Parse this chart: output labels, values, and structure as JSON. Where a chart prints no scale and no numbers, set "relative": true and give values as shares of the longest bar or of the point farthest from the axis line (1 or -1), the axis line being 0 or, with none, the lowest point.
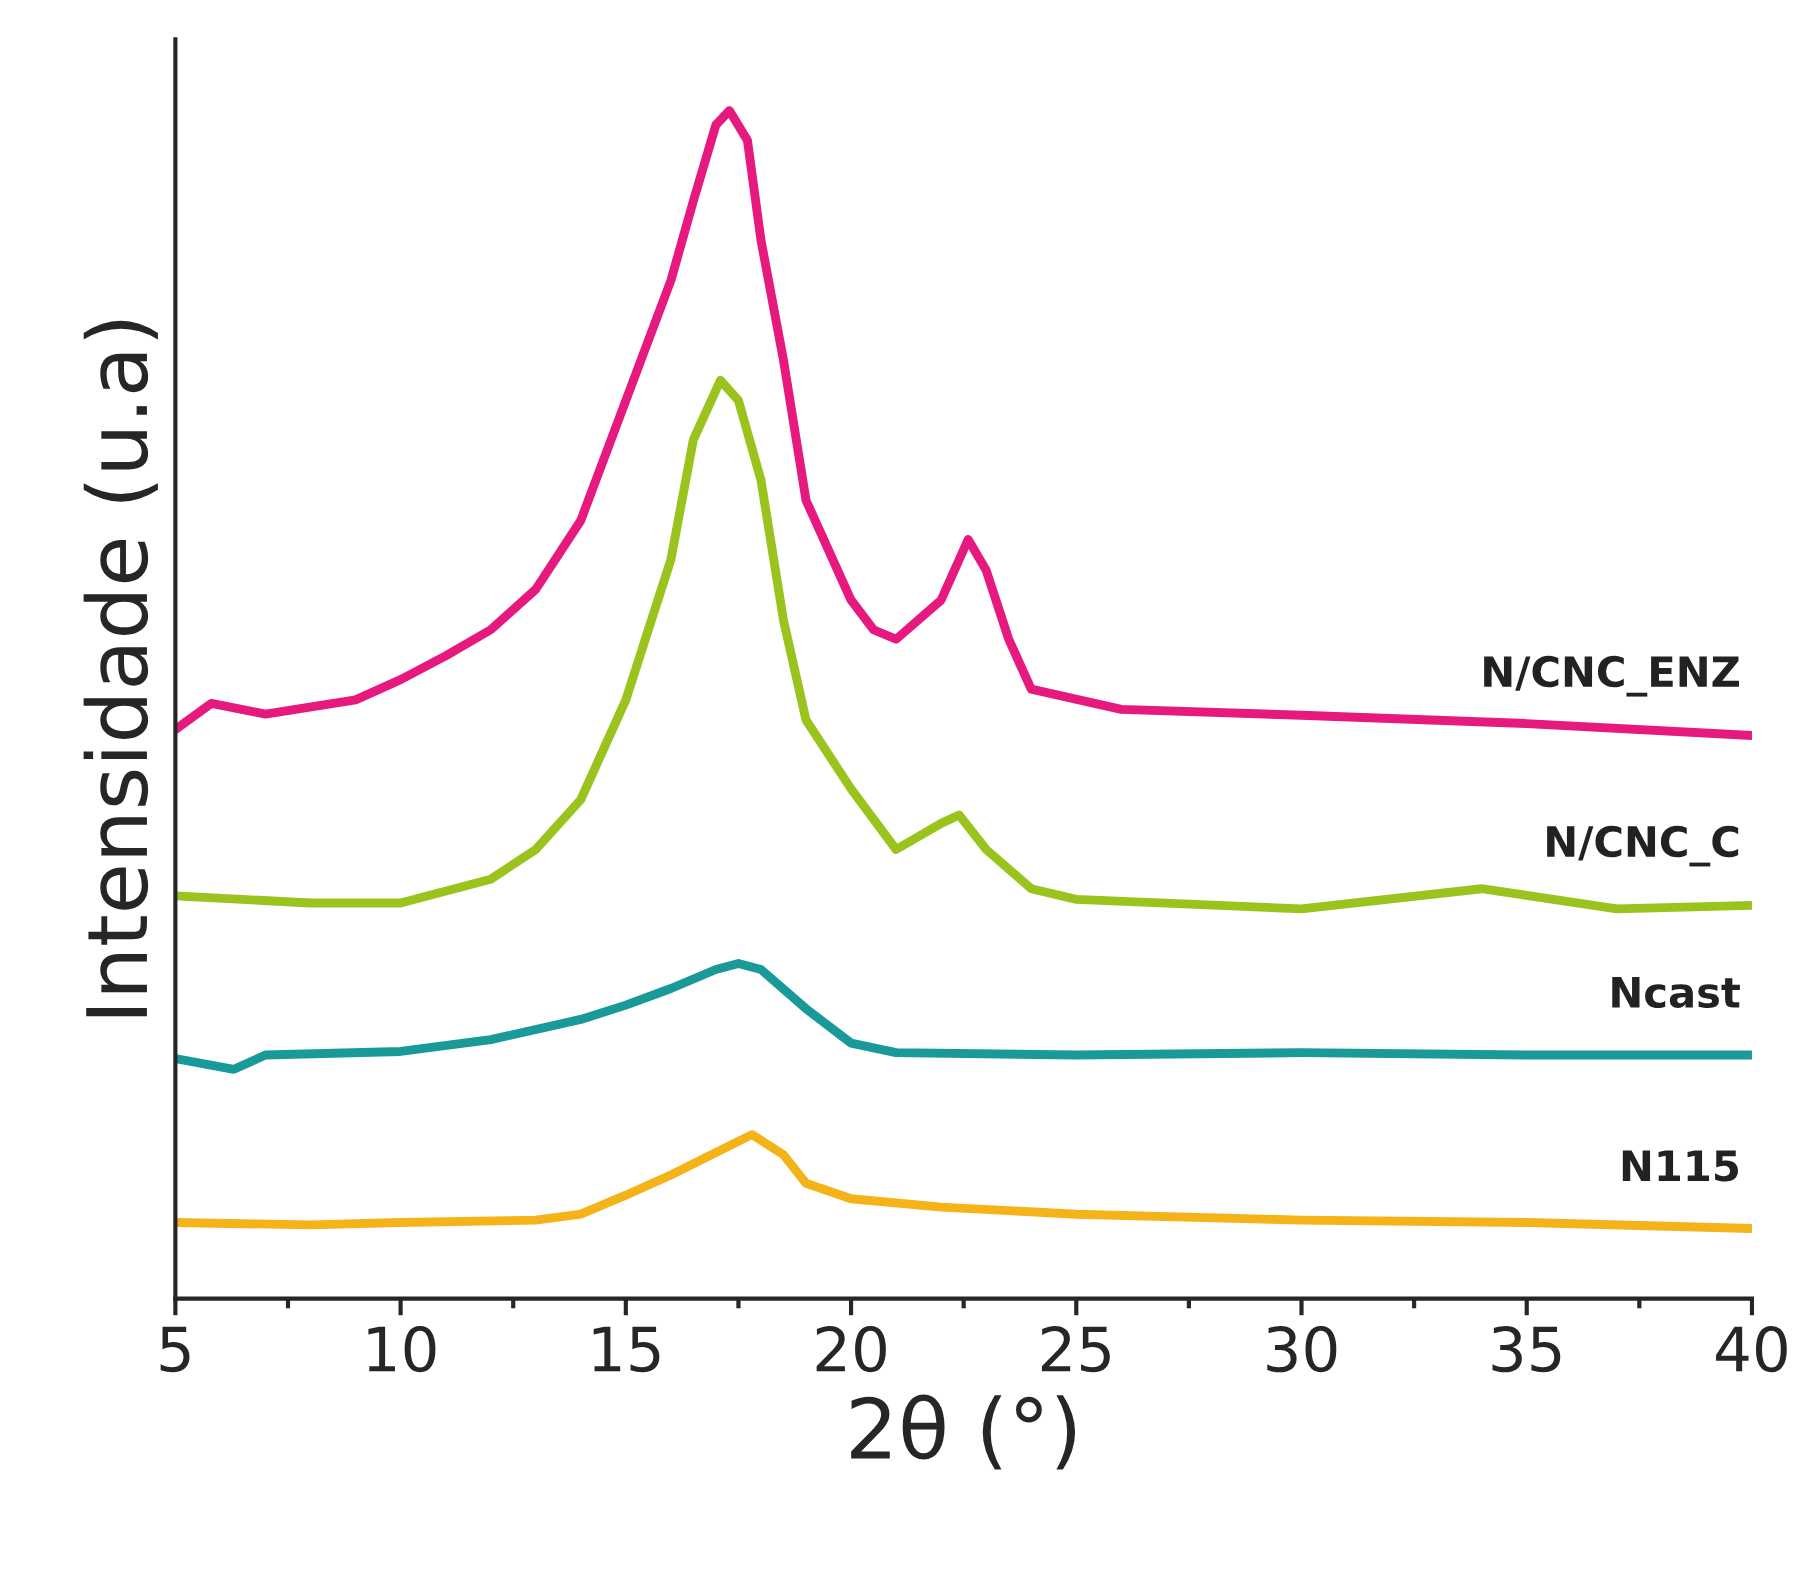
{
  "chart_data": {
    "type": "line",
    "xlabel": "2θ (°)",
    "ylabel": "Intensidade (u.a)",
    "relative": true,
    "xlim": [
      5,
      40
    ],
    "xticks": [
      5,
      10,
      15,
      20,
      25,
      30,
      35,
      40
    ],
    "tick_labels": "x",
    "grid": false,
    "legend": false,
    "marker": "none",
    "line_style": "solid",
    "series": [
      {
        "name": "N/CNC_ENZ",
        "color": "#e6197f",
        "x": [
          5,
          5.8,
          7,
          9,
          10,
          11,
          12,
          13,
          14,
          15,
          16,
          16.5,
          17,
          17.3,
          17.7,
          18,
          18.5,
          19,
          20,
          20.5,
          21,
          22,
          22.6,
          23,
          23.5,
          24,
          26,
          30,
          35,
          40
        ],
        "values": [
          0.479,
          0.501,
          0.492,
          0.504,
          0.521,
          0.541,
          0.563,
          0.597,
          0.655,
          0.756,
          0.857,
          0.924,
          0.988,
          1,
          0.975,
          0.891,
          0.79,
          0.672,
          0.588,
          0.563,
          0.555,
          0.588,
          0.639,
          0.613,
          0.555,
          0.513,
          0.496,
          0.491,
          0.484,
          0.474
        ]
      },
      {
        "name": "N/CNC_C",
        "color": "#9bc31e",
        "x": [
          5,
          8,
          10,
          12,
          13,
          14,
          15,
          16,
          16.5,
          17.1,
          17.5,
          18,
          18.5,
          19,
          20,
          21,
          22,
          22.4,
          23,
          24,
          25,
          30,
          34,
          37,
          40
        ],
        "values": [
          0.339,
          0.333,
          0.333,
          0.353,
          0.378,
          0.42,
          0.504,
          0.622,
          0.723,
          0.773,
          0.756,
          0.689,
          0.571,
          0.487,
          0.429,
          0.378,
          0.4,
          0.407,
          0.378,
          0.345,
          0.336,
          0.328,
          0.345,
          0.328,
          0.331
        ]
      },
      {
        "name": "Ncast",
        "color": "#1a9999",
        "x": [
          5,
          6.3,
          7,
          10,
          12,
          14,
          15,
          16,
          17,
          17.5,
          18,
          19,
          20,
          21,
          25,
          30,
          35,
          40
        ],
        "values": [
          0.202,
          0.193,
          0.205,
          0.208,
          0.218,
          0.235,
          0.247,
          0.261,
          0.277,
          0.282,
          0.277,
          0.244,
          0.215,
          0.207,
          0.205,
          0.207,
          0.205,
          0.205
        ]
      },
      {
        "name": "N115",
        "color": "#f5b31a",
        "x": [
          5,
          8,
          10,
          13,
          14,
          15,
          16,
          17,
          17.8,
          18.5,
          19,
          20,
          22,
          25,
          30,
          35,
          40
        ],
        "values": [
          0.064,
          0.062,
          0.064,
          0.066,
          0.071,
          0.087,
          0.104,
          0.123,
          0.138,
          0.121,
          0.097,
          0.084,
          0.077,
          0.071,
          0.066,
          0.064,
          0.059
        ]
      }
    ]
  }
}
